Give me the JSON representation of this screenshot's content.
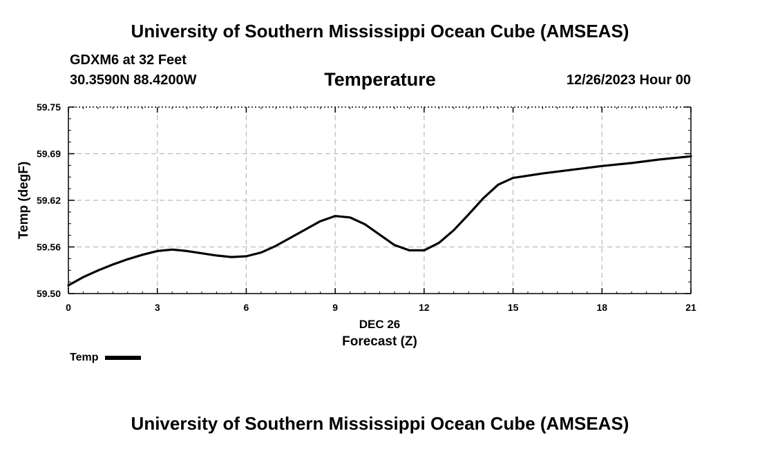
{
  "header": {
    "title": "University of Southern Mississippi Ocean Cube (AMSEAS)",
    "station": "GDXM6 at 32 Feet",
    "coords": "30.3590N  88.4200W",
    "chart_title": "Temperature",
    "forecast_time": "12/26/2023 Hour 00"
  },
  "footer": {
    "title": "University of Southern Mississippi Ocean Cube (AMSEAS)"
  },
  "legend": {
    "label": "Temp"
  },
  "chart_data": {
    "type": "line",
    "title": "Temperature",
    "xlabel": "Forecast (Z)",
    "xlabel_date": "DEC 26",
    "ylabel": "Temp (degF)",
    "xlim": [
      0,
      21
    ],
    "ylim": [
      59.5,
      59.75
    ],
    "x_ticks": [
      0,
      3,
      6,
      9,
      12,
      15,
      18,
      21
    ],
    "x_tick_labels": [
      "0",
      "3",
      "6",
      "9",
      "12",
      "15",
      "18",
      "21"
    ],
    "y_ticks": [
      59.5,
      59.5625,
      59.625,
      59.6875,
      59.75
    ],
    "y_tick_labels": [
      "59.50",
      "59.56",
      "59.62",
      "59.69",
      "59.75"
    ],
    "grid": true,
    "series": [
      {
        "name": "Temp",
        "color": "#000000",
        "x": [
          0,
          0.5,
          1,
          1.5,
          2,
          2.5,
          3,
          3.5,
          4,
          4.5,
          5,
          5.5,
          6,
          6.5,
          7,
          7.5,
          8,
          8.5,
          9,
          9.5,
          10,
          10.5,
          11,
          11.5,
          12,
          12.5,
          13,
          13.5,
          14,
          14.5,
          15,
          16,
          17,
          18,
          19,
          20,
          21
        ],
        "values": [
          59.511,
          59.522,
          59.531,
          59.539,
          59.546,
          59.552,
          59.557,
          59.559,
          59.557,
          59.554,
          59.551,
          59.549,
          59.55,
          59.555,
          59.564,
          59.575,
          59.586,
          59.597,
          59.604,
          59.602,
          59.593,
          59.579,
          59.565,
          59.558,
          59.558,
          59.568,
          59.585,
          59.606,
          59.628,
          59.646,
          59.655,
          59.661,
          59.666,
          59.671,
          59.675,
          59.68,
          59.684
        ]
      }
    ]
  }
}
